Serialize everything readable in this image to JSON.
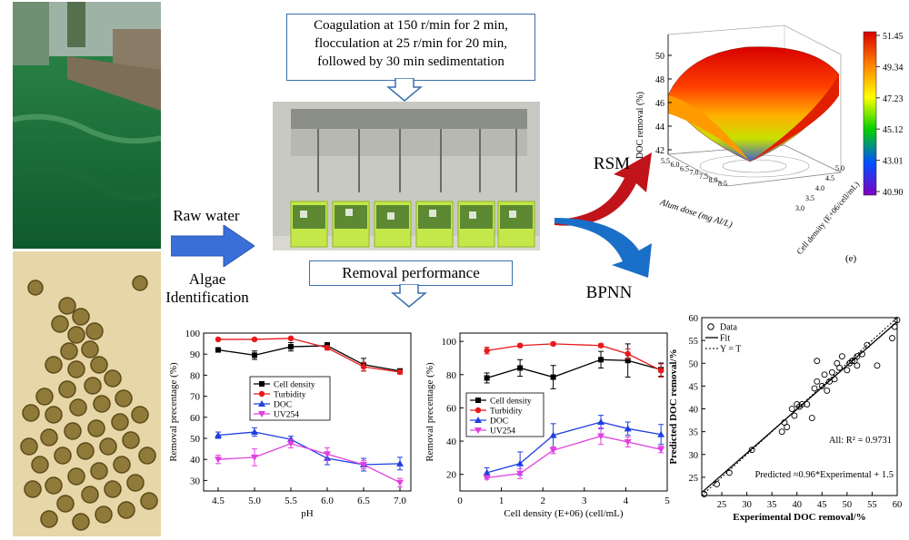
{
  "callouts": {
    "procedure": [
      "Coagulation at 150 r/min for 2 min,",
      "flocculation at 25 r/min for 20 min,",
      "followed by 30 min sedimentation"
    ],
    "performance": "Removal performance"
  },
  "labels": {
    "raw_water": "Raw water",
    "algae": [
      "Algae",
      "Identification"
    ],
    "rsm": "RSM",
    "bpnn": "BPNN",
    "panel_e": "(e)"
  },
  "colors": {
    "cell_density": "#000000",
    "turbidity": "#e8191c",
    "doc": "#1f3fe0",
    "uv254": "#e040e0",
    "arrow_blue": "#3a6fd8",
    "rsm_red": "#c0141a",
    "bpnn_blue": "#1a6fc8"
  },
  "chart_data": [
    {
      "type": "line",
      "title": "",
      "xlabel": "pH",
      "ylabel": "Removal precentage (%)",
      "xlim": [
        4.3,
        7.15
      ],
      "ylim": [
        25,
        100
      ],
      "xticks": [
        "4.5",
        "5.0",
        "5.5",
        "6.0",
        "6.5",
        "7.0"
      ],
      "yticks": [
        "30",
        "40",
        "50",
        "60",
        "70",
        "80",
        "90",
        "100"
      ],
      "x": [
        4.5,
        5.0,
        5.5,
        6.0,
        6.5,
        7.0
      ],
      "legend": [
        "Cell density",
        "Turbidity",
        "DOC",
        "UV254"
      ],
      "series": [
        {
          "name": "Cell density",
          "values": [
            92,
            89.5,
            93.5,
            94,
            85,
            82
          ],
          "errors": [
            1,
            2,
            2,
            1.5,
            3,
            1
          ]
        },
        {
          "name": "Turbidity",
          "values": [
            97,
            97,
            97.5,
            93,
            84,
            81.5
          ],
          "errors": [
            0.5,
            0.5,
            0.5,
            1,
            2,
            1
          ]
        },
        {
          "name": "DOC",
          "values": [
            51.5,
            53,
            49.5,
            40.5,
            37.5,
            38
          ],
          "errors": [
            1.5,
            2,
            1.5,
            3,
            3,
            3
          ]
        },
        {
          "name": "UV254",
          "values": [
            40,
            41,
            47.5,
            42.5,
            37.5,
            29
          ],
          "errors": [
            2,
            4,
            2,
            3,
            2,
            2
          ]
        }
      ]
    },
    {
      "type": "line",
      "title": "",
      "xlabel": "Cell density (E+06) (cell/mL)",
      "ylabel": "Removal precentage (%)",
      "xlim": [
        0,
        5
      ],
      "ylim": [
        10,
        105
      ],
      "xticks": [
        "0",
        "1",
        "2",
        "3",
        "4",
        "5"
      ],
      "yticks": [
        "20",
        "40",
        "60",
        "80",
        "100"
      ],
      "x": [
        0.65,
        1.45,
        2.25,
        3.4,
        4.05,
        4.85
      ],
      "legend": [
        "Cell density",
        "Turbidity",
        "DOC",
        "UV254"
      ],
      "series": [
        {
          "name": "Cell density",
          "values": [
            78,
            84,
            78.5,
            89,
            88.5,
            83
          ],
          "errors": [
            3,
            5,
            7,
            5,
            10,
            4
          ]
        },
        {
          "name": "Turbidity",
          "values": [
            94.5,
            97.5,
            98.5,
            97.5,
            92.5,
            82.5
          ],
          "errors": [
            2,
            1,
            1,
            1,
            3,
            4
          ]
        },
        {
          "name": "DOC",
          "values": [
            21,
            26.5,
            43.5,
            51.5,
            47.5,
            44
          ],
          "errors": [
            3,
            7,
            7,
            4,
            4,
            6
          ]
        },
        {
          "name": "UV254",
          "values": [
            18,
            20.5,
            34.5,
            43,
            39.5,
            35
          ],
          "errors": [
            1,
            3,
            2,
            5,
            3,
            2
          ]
        }
      ]
    },
    {
      "type": "scatter",
      "title": "",
      "xlabel": "Experimental DOC removal/%",
      "ylabel": "Predicted DOC removal/%",
      "xlim": [
        21,
        60
      ],
      "ylim": [
        21,
        60
      ],
      "xticks": [
        "25",
        "30",
        "35",
        "40",
        "45",
        "50",
        "55",
        "60"
      ],
      "yticks": [
        "25",
        "30",
        "35",
        "40",
        "45",
        "50",
        "55",
        "60"
      ],
      "legend": [
        "Data",
        "Fit",
        "Y = T"
      ],
      "annotation_r2": "All: R² = 0.9731",
      "annotation_fit": "Predicted ≈0.96*Experimental + 1.5",
      "points": [
        [
          21.5,
          21.3
        ],
        [
          24,
          23.5
        ],
        [
          26.5,
          26
        ],
        [
          31,
          31
        ],
        [
          37,
          35
        ],
        [
          37.5,
          37
        ],
        [
          38,
          36
        ],
        [
          39,
          40
        ],
        [
          39.5,
          38.5
        ],
        [
          40,
          41
        ],
        [
          40.5,
          40.5
        ],
        [
          41,
          41
        ],
        [
          42,
          41
        ],
        [
          43,
          38
        ],
        [
          43.5,
          44.5
        ],
        [
          44,
          46
        ],
        [
          44,
          50.5
        ],
        [
          45,
          45
        ],
        [
          45.5,
          47.5
        ],
        [
          46,
          44
        ],
        [
          46.5,
          46
        ],
        [
          47,
          48
        ],
        [
          47.5,
          46.5
        ],
        [
          48,
          50
        ],
        [
          48.5,
          49
        ],
        [
          49,
          51.5
        ],
        [
          50,
          48.5
        ],
        [
          50.5,
          50
        ],
        [
          51,
          50.5
        ],
        [
          51.5,
          50.5
        ],
        [
          52,
          49.5
        ],
        [
          52,
          51.5
        ],
        [
          53,
          52
        ],
        [
          54,
          54
        ],
        [
          56,
          49.5
        ],
        [
          59,
          55.5
        ],
        [
          59.5,
          58
        ],
        [
          60,
          59.5
        ]
      ]
    },
    {
      "type": "surface",
      "title": "",
      "xlabel": "Alum dose (mg Al/L)",
      "ylabel": "Cell density (E+06/cell/mL)",
      "zlabel": "DOC removal (%)",
      "zticks": [
        "42",
        "44",
        "46",
        "48",
        "50"
      ],
      "colorbar": [
        "51.45",
        "49.34",
        "47.23",
        "45.12",
        "43.01",
        "40.90"
      ],
      "alum_ticks": [
        "5.5",
        "6.0",
        "6.5",
        "7.0",
        "7.5",
        "8.0",
        "8.5"
      ],
      "cell_ticks": [
        "3.0",
        "3.5",
        "4.0",
        "4.5",
        "5.0"
      ]
    }
  ]
}
